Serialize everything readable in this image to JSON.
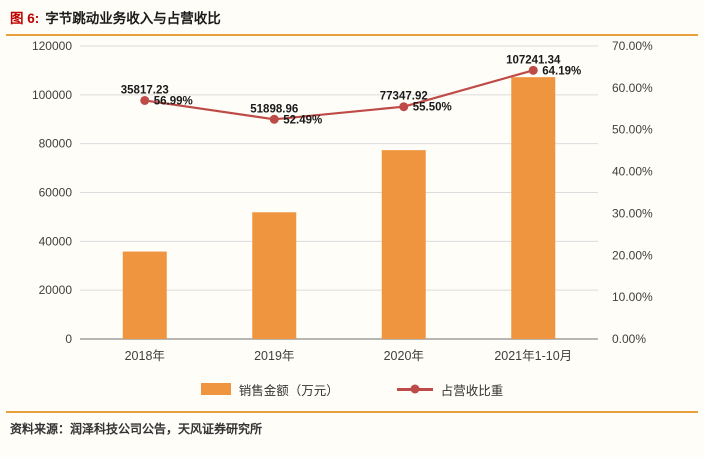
{
  "header": {
    "title_prefix": "图 6:",
    "title": "字节跳动业务收入与占营收比"
  },
  "footer": {
    "source": "资料来源：润泽科技公司公告，天风证券研究所"
  },
  "colors": {
    "bar": "#F0953F",
    "line": "#BE4B48",
    "grid": "#DCDCDC",
    "axis": "#8C8C8C",
    "tick_text": "#404040",
    "data_label": "#1a1a1a",
    "divider": "#E8A13C",
    "title_prefix": "#C00000"
  },
  "chart_data": {
    "type": "bar",
    "subtype": "bar-line-combo",
    "title": "字节跳动业务收入与占营收比",
    "categories": [
      "2018年",
      "2019年",
      "2020年",
      "2021年1-10月"
    ],
    "series": [
      {
        "name": "销售金额（万元）",
        "type": "bar",
        "axis": "left",
        "values": [
          35817.23,
          51898.96,
          77347.92,
          107241.34
        ],
        "labels": [
          "35817.23",
          "51898.96",
          "77347.92",
          "107241.34"
        ],
        "color": "#F0953F"
      },
      {
        "name": "占营收比重",
        "type": "line",
        "axis": "right",
        "values": [
          56.99,
          52.49,
          55.5,
          64.19
        ],
        "labels": [
          "56.99%",
          "52.49%",
          "55.50%",
          "64.19%"
        ],
        "color": "#BE4B48"
      }
    ],
    "left_axis": {
      "min": 0,
      "max": 120000,
      "step": 20000,
      "ticks": [
        "0",
        "20000",
        "40000",
        "60000",
        "80000",
        "100000",
        "120000"
      ]
    },
    "right_axis": {
      "min": 0,
      "max": 70,
      "step": 10,
      "ticks": [
        "0.00%",
        "10.00%",
        "20.00%",
        "30.00%",
        "40.00%",
        "50.00%",
        "60.00%",
        "70.00%"
      ]
    },
    "grid": true,
    "legend_position": "bottom"
  }
}
